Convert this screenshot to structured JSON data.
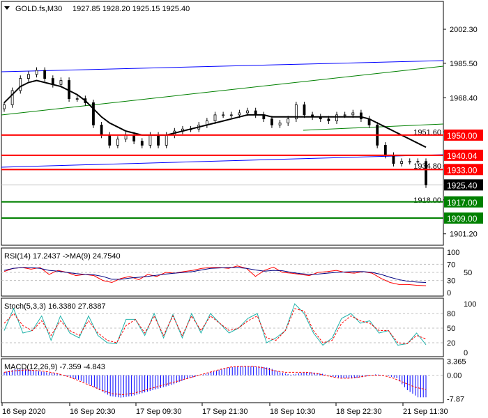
{
  "header": {
    "symbol": "GOLD.fs,M30",
    "ohlc": "1927.85 1928.20 1925.15 1925.40"
  },
  "price_axis": {
    "ticks": [
      "2002.30",
      "1985.50",
      "1968.40",
      "1951.60",
      "1934.80",
      "1918.00",
      "1901.20"
    ]
  },
  "levels": [
    {
      "label": "1950.00",
      "price": 1950.0,
      "color": "#ff0000"
    },
    {
      "label": "1940.04",
      "price": 1940.04,
      "color": "#ff0000"
    },
    {
      "label": "1933.00",
      "price": 1933.0,
      "color": "#ff0000"
    },
    {
      "label": "1917.00",
      "price": 1917.0,
      "color": "#008000"
    },
    {
      "label": "1909.00",
      "price": 1909.0,
      "color": "#008000"
    }
  ],
  "current": {
    "label": "1925.40",
    "price": 1925.4
  },
  "rsi": {
    "label": "RSI(14) 17.2437  ->MA(9) 24.7540",
    "ticks": [
      "100",
      "70",
      "50",
      "30",
      "0"
    ]
  },
  "stoch": {
    "label": "Stoch(5,3,3) 16.3380 27.8387",
    "ticks": [
      "100",
      "80",
      "50",
      "20",
      "0"
    ]
  },
  "macd": {
    "label": "MACD(12,26,9) -7.359 -4.843",
    "ticks": [
      "3.365",
      "0.00",
      "-7.87"
    ]
  },
  "time_axis": [
    "16 Sep 2020",
    "16 Sep 20:30",
    "17 Sep 09:30",
    "17 Sep 21:30",
    "18 Sep 10:30",
    "18 Sep 22:30",
    "21 Sep 11:30"
  ],
  "chart_data": {
    "type": "candlestick",
    "closes": [
      1965,
      1972,
      1978,
      1980,
      1982,
      1978,
      1975,
      1977,
      1968,
      1968,
      1966,
      1955,
      1950,
      1945,
      1948,
      1950,
      1947,
      1945,
      1950,
      1945,
      1950,
      1952,
      1953,
      1953,
      1955,
      1957,
      1960,
      1960,
      1960,
      1961,
      1962,
      1960,
      1958,
      1955,
      1956,
      1958,
      1965,
      1960,
      1959,
      1958,
      1957,
      1960,
      1960,
      1961,
      1958,
      1955,
      1945,
      1940,
      1936,
      1937,
      1937,
      1937,
      1925.4
    ],
    "ma": [
      1966,
      1970,
      1974,
      1976,
      1977,
      1976,
      1975,
      1974,
      1972,
      1970,
      1967,
      1963,
      1959,
      1956,
      1954,
      1952,
      1951,
      1950,
      1950,
      1950,
      1950,
      1951,
      1952,
      1953,
      1954,
      1955,
      1956,
      1957,
      1958,
      1959,
      1960,
      1960,
      1960,
      1959,
      1959,
      1959,
      1959,
      1959,
      1959,
      1959,
      1959,
      1959,
      1959,
      1959,
      1959,
      1958,
      1956,
      1954,
      1952,
      1950,
      1948,
      1946,
      1944
    ],
    "rsi": [
      52,
      60,
      62,
      58,
      62,
      45,
      55,
      50,
      42,
      45,
      42,
      30,
      25,
      35,
      40,
      32,
      45,
      40,
      50,
      48,
      52,
      55,
      60,
      62,
      62,
      60,
      66,
      60,
      40,
      55,
      63,
      50,
      48,
      45,
      42,
      50,
      52,
      55,
      50,
      48,
      52,
      48,
      35,
      25,
      20,
      20,
      18,
      17
    ],
    "rsi_ma": [
      55,
      60,
      62,
      62,
      60,
      55,
      53,
      50,
      47,
      45,
      44,
      40,
      33,
      33,
      36,
      38,
      40,
      43,
      46,
      48,
      50,
      52,
      56,
      60,
      61,
      62,
      62,
      60,
      56,
      53,
      55,
      54,
      50,
      47,
      45,
      46,
      48,
      50,
      51,
      52,
      52,
      50,
      45,
      38,
      32,
      28,
      26,
      25
    ],
    "stoch_k": [
      45,
      90,
      40,
      45,
      75,
      25,
      75,
      40,
      30,
      75,
      35,
      20,
      18,
      68,
      68,
      35,
      80,
      30,
      78,
      30,
      80,
      40,
      80,
      60,
      40,
      50,
      70,
      80,
      20,
      30,
      45,
      100,
      80,
      40,
      15,
      30,
      70,
      80,
      60,
      65,
      40,
      45,
      15,
      18,
      40,
      16
    ],
    "stoch_d": [
      60,
      80,
      55,
      45,
      65,
      35,
      65,
      45,
      35,
      65,
      40,
      25,
      20,
      55,
      68,
      40,
      75,
      35,
      75,
      35,
      75,
      45,
      75,
      60,
      45,
      50,
      65,
      75,
      30,
      25,
      45,
      90,
      85,
      45,
      20,
      25,
      60,
      75,
      65,
      60,
      45,
      45,
      20,
      18,
      35,
      28
    ],
    "macd_hist": [
      1,
      2,
      2,
      1.5,
      1,
      0.5,
      -0.5,
      -1.5,
      -3,
      -5,
      -7,
      -7.5,
      -7,
      -6,
      -5,
      -4,
      -3,
      -1.5,
      -0.5,
      0.5,
      1.5,
      2.5,
      3,
      3,
      3,
      2.5,
      1,
      0.2,
      0.8,
      1,
      0.5,
      -0.5,
      -1,
      -1,
      -0.5,
      0.3,
      0,
      -1,
      -5,
      -7.4
    ],
    "macd_signal": [
      1,
      1.5,
      1.8,
      1.6,
      1.2,
      0.5,
      -0.5,
      -2,
      -3.5,
      -5,
      -6.2,
      -6.5,
      -6,
      -5,
      -4,
      -3,
      -2,
      -1,
      0,
      1,
      2,
      2.8,
      3,
      3,
      2.5,
      1.5,
      1,
      1,
      1,
      0.5,
      -0.3,
      -1,
      -1,
      -0.5,
      0,
      0,
      -1,
      -2.5,
      -4,
      -4.8
    ],
    "price_range": [
      1895,
      2012
    ]
  }
}
